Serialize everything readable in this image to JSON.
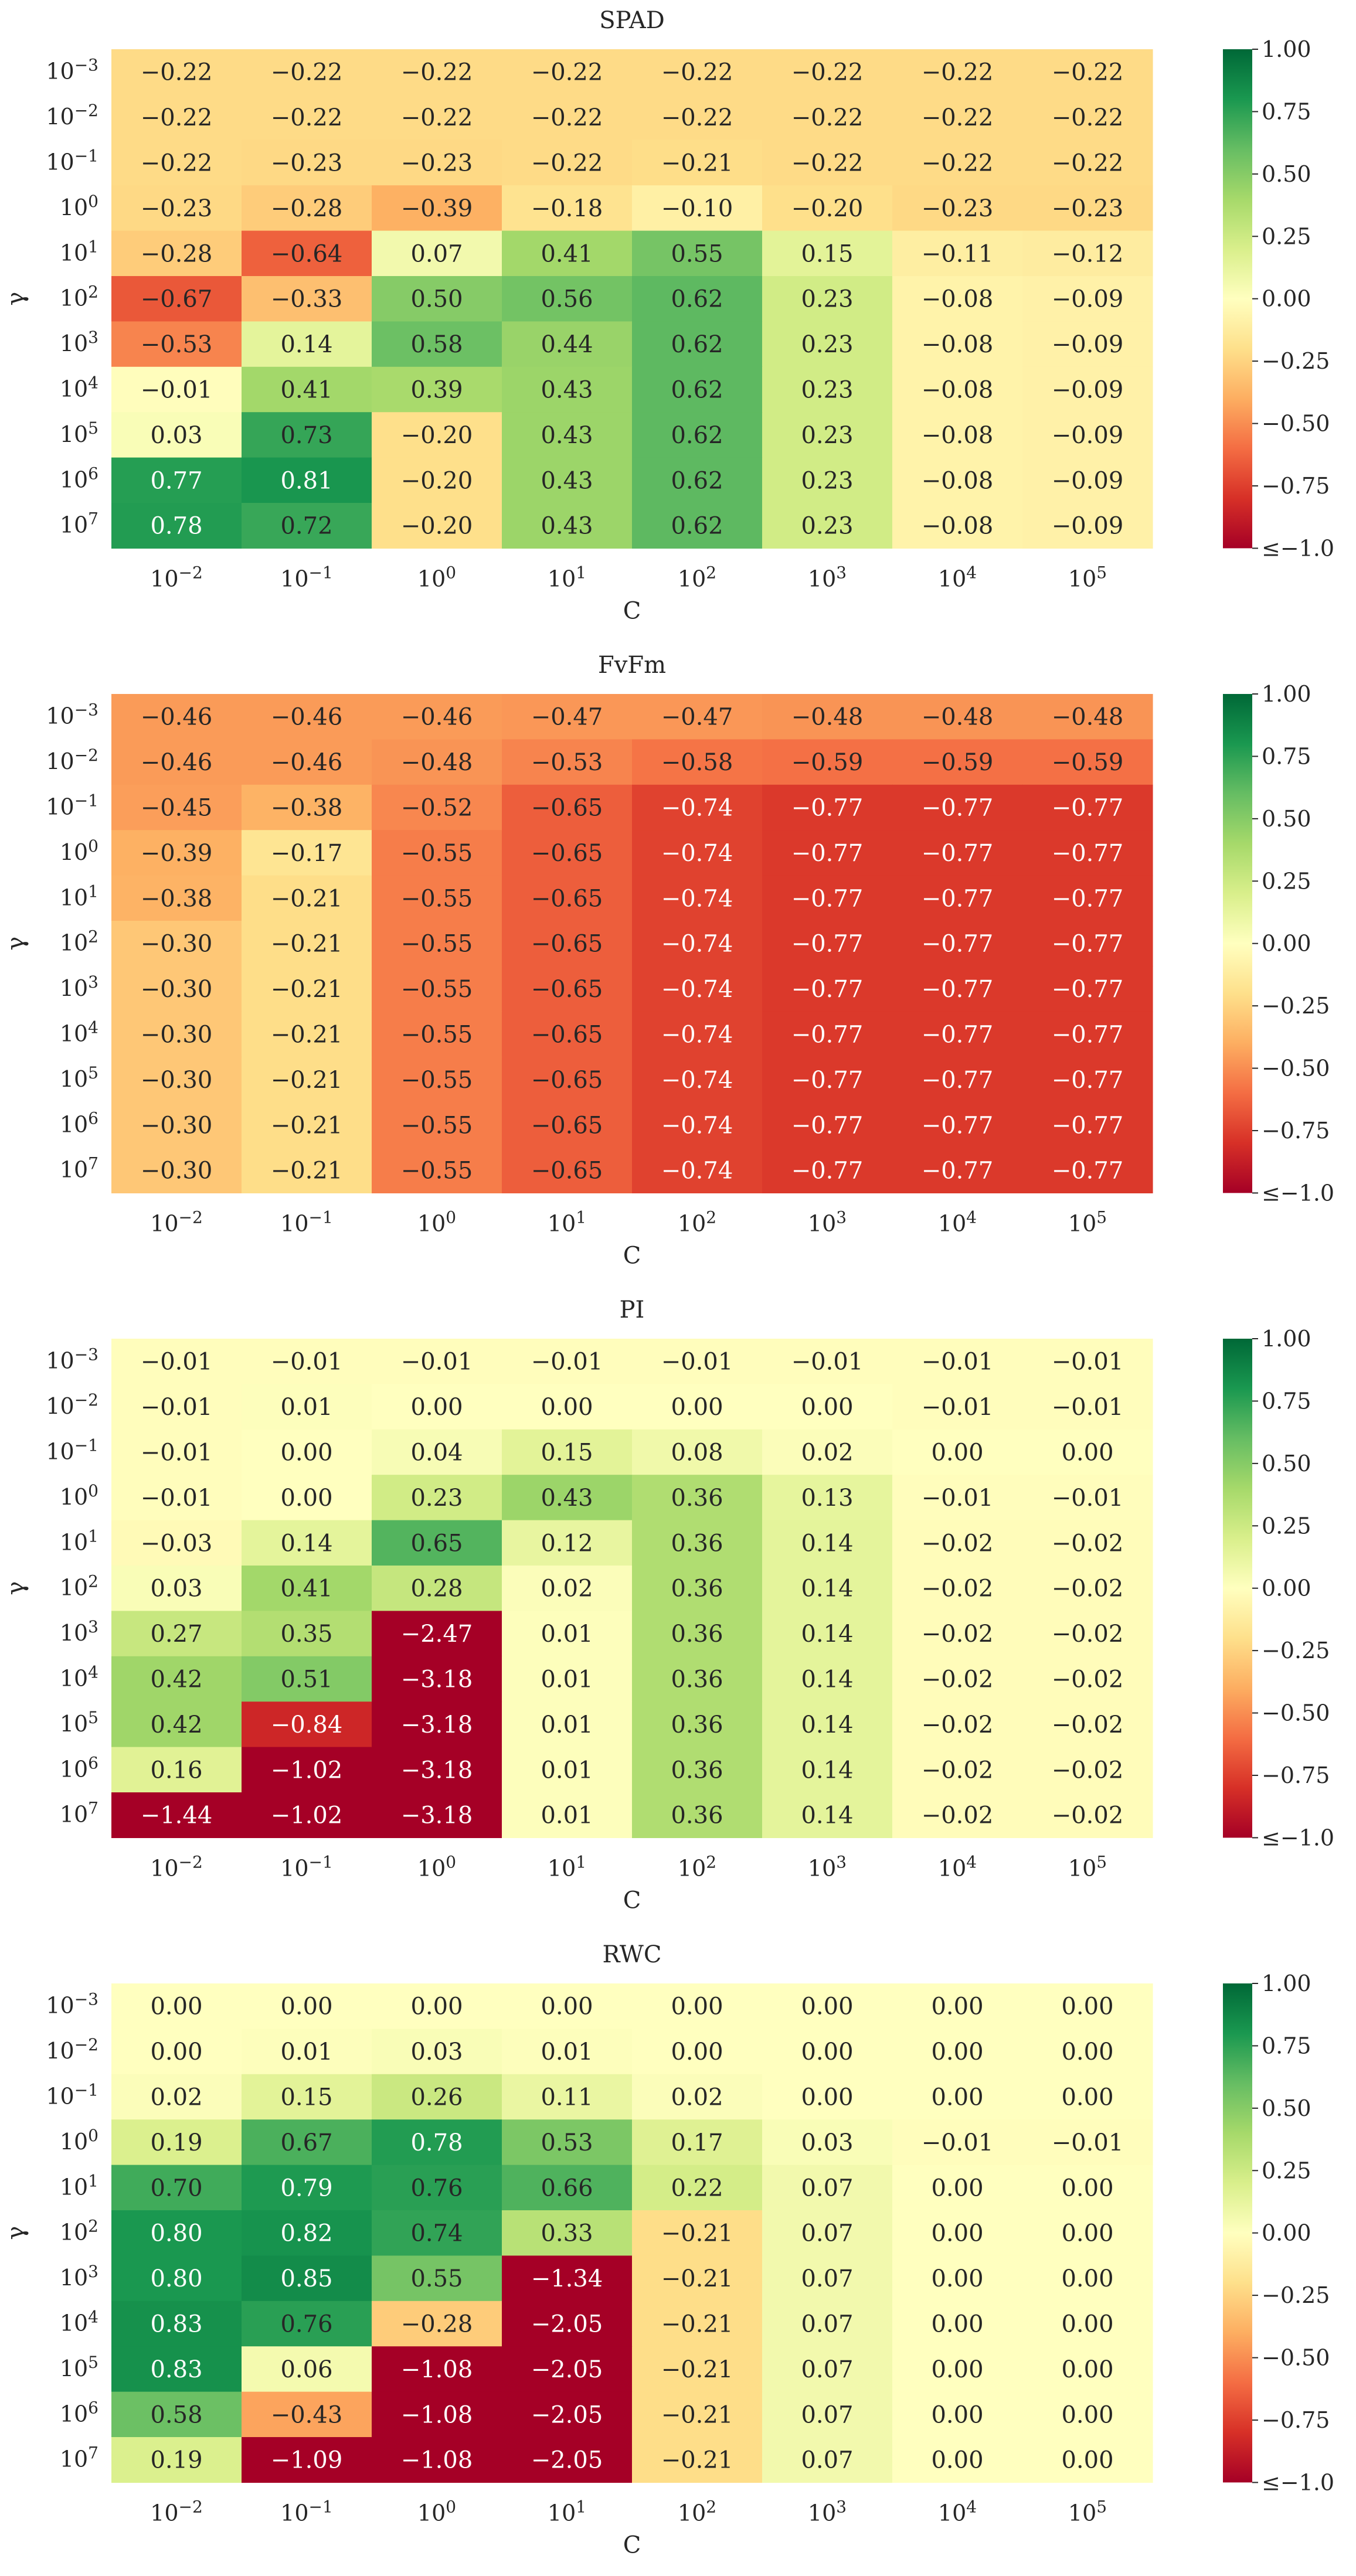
{
  "colorbar": {
    "ticks": [
      "1.00",
      "0.75",
      "0.50",
      "0.25",
      "0.00",
      "−0.25",
      "−0.50",
      "−0.75",
      "≤−1.0"
    ],
    "tick_values": [
      1.0,
      0.75,
      0.5,
      0.25,
      0.0,
      -0.25,
      -0.5,
      -0.75,
      -1.0
    ],
    "colormap": "RdYlGn",
    "vmin": -1.0,
    "vmax": 1.0
  },
  "chart_data": [
    {
      "type": "heatmap",
      "title": "SPAD",
      "xlabel": "C",
      "ylabel": "γ",
      "x_categories": [
        "10^-2",
        "10^-1",
        "10^0",
        "10^1",
        "10^2",
        "10^3",
        "10^4",
        "10^5"
      ],
      "y_categories": [
        "10^-3",
        "10^-2",
        "10^-1",
        "10^0",
        "10^1",
        "10^2",
        "10^3",
        "10^4",
        "10^5",
        "10^6",
        "10^7"
      ],
      "values": [
        [
          -0.22,
          -0.22,
          -0.22,
          -0.22,
          -0.22,
          -0.22,
          -0.22,
          -0.22
        ],
        [
          -0.22,
          -0.22,
          -0.22,
          -0.22,
          -0.22,
          -0.22,
          -0.22,
          -0.22
        ],
        [
          -0.22,
          -0.23,
          -0.23,
          -0.22,
          -0.21,
          -0.22,
          -0.22,
          -0.22
        ],
        [
          -0.23,
          -0.28,
          -0.39,
          -0.18,
          -0.1,
          -0.2,
          -0.23,
          -0.23
        ],
        [
          -0.28,
          -0.64,
          0.07,
          0.41,
          0.55,
          0.15,
          -0.11,
          -0.12
        ],
        [
          -0.67,
          -0.33,
          0.5,
          0.56,
          0.62,
          0.23,
          -0.08,
          -0.09
        ],
        [
          -0.53,
          0.14,
          0.58,
          0.44,
          0.62,
          0.23,
          -0.08,
          -0.09
        ],
        [
          -0.01,
          0.41,
          0.39,
          0.43,
          0.62,
          0.23,
          -0.08,
          -0.09
        ],
        [
          0.03,
          0.73,
          -0.2,
          0.43,
          0.62,
          0.23,
          -0.08,
          -0.09
        ],
        [
          0.77,
          0.81,
          -0.2,
          0.43,
          0.62,
          0.23,
          -0.08,
          -0.09
        ],
        [
          0.78,
          0.72,
          -0.2,
          0.43,
          0.62,
          0.23,
          -0.08,
          -0.09
        ]
      ]
    },
    {
      "type": "heatmap",
      "title": "FvFm",
      "xlabel": "C",
      "ylabel": "γ",
      "x_categories": [
        "10^-2",
        "10^-1",
        "10^0",
        "10^1",
        "10^2",
        "10^3",
        "10^4",
        "10^5"
      ],
      "y_categories": [
        "10^-3",
        "10^-2",
        "10^-1",
        "10^0",
        "10^1",
        "10^2",
        "10^3",
        "10^4",
        "10^5",
        "10^6",
        "10^7"
      ],
      "values": [
        [
          -0.46,
          -0.46,
          -0.46,
          -0.47,
          -0.47,
          -0.48,
          -0.48,
          -0.48
        ],
        [
          -0.46,
          -0.46,
          -0.48,
          -0.53,
          -0.58,
          -0.59,
          -0.59,
          -0.59
        ],
        [
          -0.45,
          -0.38,
          -0.52,
          -0.65,
          -0.74,
          -0.77,
          -0.77,
          -0.77
        ],
        [
          -0.39,
          -0.17,
          -0.55,
          -0.65,
          -0.74,
          -0.77,
          -0.77,
          -0.77
        ],
        [
          -0.38,
          -0.21,
          -0.55,
          -0.65,
          -0.74,
          -0.77,
          -0.77,
          -0.77
        ],
        [
          -0.3,
          -0.21,
          -0.55,
          -0.65,
          -0.74,
          -0.77,
          -0.77,
          -0.77
        ],
        [
          -0.3,
          -0.21,
          -0.55,
          -0.65,
          -0.74,
          -0.77,
          -0.77,
          -0.77
        ],
        [
          -0.3,
          -0.21,
          -0.55,
          -0.65,
          -0.74,
          -0.77,
          -0.77,
          -0.77
        ],
        [
          -0.3,
          -0.21,
          -0.55,
          -0.65,
          -0.74,
          -0.77,
          -0.77,
          -0.77
        ],
        [
          -0.3,
          -0.21,
          -0.55,
          -0.65,
          -0.74,
          -0.77,
          -0.77,
          -0.77
        ],
        [
          -0.3,
          -0.21,
          -0.55,
          -0.65,
          -0.74,
          -0.77,
          -0.77,
          -0.77
        ]
      ]
    },
    {
      "type": "heatmap",
      "title": "PI",
      "xlabel": "C",
      "ylabel": "γ",
      "x_categories": [
        "10^-2",
        "10^-1",
        "10^0",
        "10^1",
        "10^2",
        "10^3",
        "10^4",
        "10^5"
      ],
      "y_categories": [
        "10^-3",
        "10^-2",
        "10^-1",
        "10^0",
        "10^1",
        "10^2",
        "10^3",
        "10^4",
        "10^5",
        "10^6",
        "10^7"
      ],
      "values": [
        [
          -0.01,
          -0.01,
          -0.01,
          -0.01,
          -0.01,
          -0.01,
          -0.01,
          -0.01
        ],
        [
          -0.01,
          0.01,
          0.0,
          0.0,
          0.0,
          0.0,
          -0.01,
          -0.01
        ],
        [
          -0.01,
          0.0,
          0.04,
          0.15,
          0.08,
          0.02,
          0.0,
          0.0
        ],
        [
          -0.01,
          0.0,
          0.23,
          0.43,
          0.36,
          0.13,
          -0.01,
          -0.01
        ],
        [
          -0.03,
          0.14,
          0.65,
          0.12,
          0.36,
          0.14,
          -0.02,
          -0.02
        ],
        [
          0.03,
          0.41,
          0.28,
          0.02,
          0.36,
          0.14,
          -0.02,
          -0.02
        ],
        [
          0.27,
          0.35,
          -2.47,
          0.01,
          0.36,
          0.14,
          -0.02,
          -0.02
        ],
        [
          0.42,
          0.51,
          -3.18,
          0.01,
          0.36,
          0.14,
          -0.02,
          -0.02
        ],
        [
          0.42,
          -0.84,
          -3.18,
          0.01,
          0.36,
          0.14,
          -0.02,
          -0.02
        ],
        [
          0.16,
          -1.02,
          -3.18,
          0.01,
          0.36,
          0.14,
          -0.02,
          -0.02
        ],
        [
          -1.44,
          -1.02,
          -3.18,
          0.01,
          0.36,
          0.14,
          -0.02,
          -0.02
        ]
      ]
    },
    {
      "type": "heatmap",
      "title": "RWC",
      "xlabel": "C",
      "ylabel": "γ",
      "x_categories": [
        "10^-2",
        "10^-1",
        "10^0",
        "10^1",
        "10^2",
        "10^3",
        "10^4",
        "10^5"
      ],
      "y_categories": [
        "10^-3",
        "10^-2",
        "10^-1",
        "10^0",
        "10^1",
        "10^2",
        "10^3",
        "10^4",
        "10^5",
        "10^6",
        "10^7"
      ],
      "values": [
        [
          0.0,
          0.0,
          0.0,
          0.0,
          0.0,
          0.0,
          0.0,
          0.0
        ],
        [
          0.0,
          0.01,
          0.03,
          0.01,
          0.0,
          0.0,
          0.0,
          0.0
        ],
        [
          0.02,
          0.15,
          0.26,
          0.11,
          0.02,
          0.0,
          0.0,
          0.0
        ],
        [
          0.19,
          0.67,
          0.78,
          0.53,
          0.17,
          0.03,
          -0.01,
          -0.01
        ],
        [
          0.7,
          0.79,
          0.76,
          0.66,
          0.22,
          0.07,
          0.0,
          0.0
        ],
        [
          0.8,
          0.82,
          0.74,
          0.33,
          -0.21,
          0.07,
          0.0,
          0.0
        ],
        [
          0.8,
          0.85,
          0.55,
          -1.34,
          -0.21,
          0.07,
          0.0,
          0.0
        ],
        [
          0.83,
          0.76,
          -0.28,
          -2.05,
          -0.21,
          0.07,
          0.0,
          0.0
        ],
        [
          0.83,
          0.06,
          -1.08,
          -2.05,
          -0.21,
          0.07,
          0.0,
          0.0
        ],
        [
          0.58,
          -0.43,
          -1.08,
          -2.05,
          -0.21,
          0.07,
          0.0,
          0.0
        ],
        [
          0.19,
          -1.09,
          -1.08,
          -2.05,
          -0.21,
          0.07,
          0.0,
          0.0
        ]
      ]
    }
  ]
}
